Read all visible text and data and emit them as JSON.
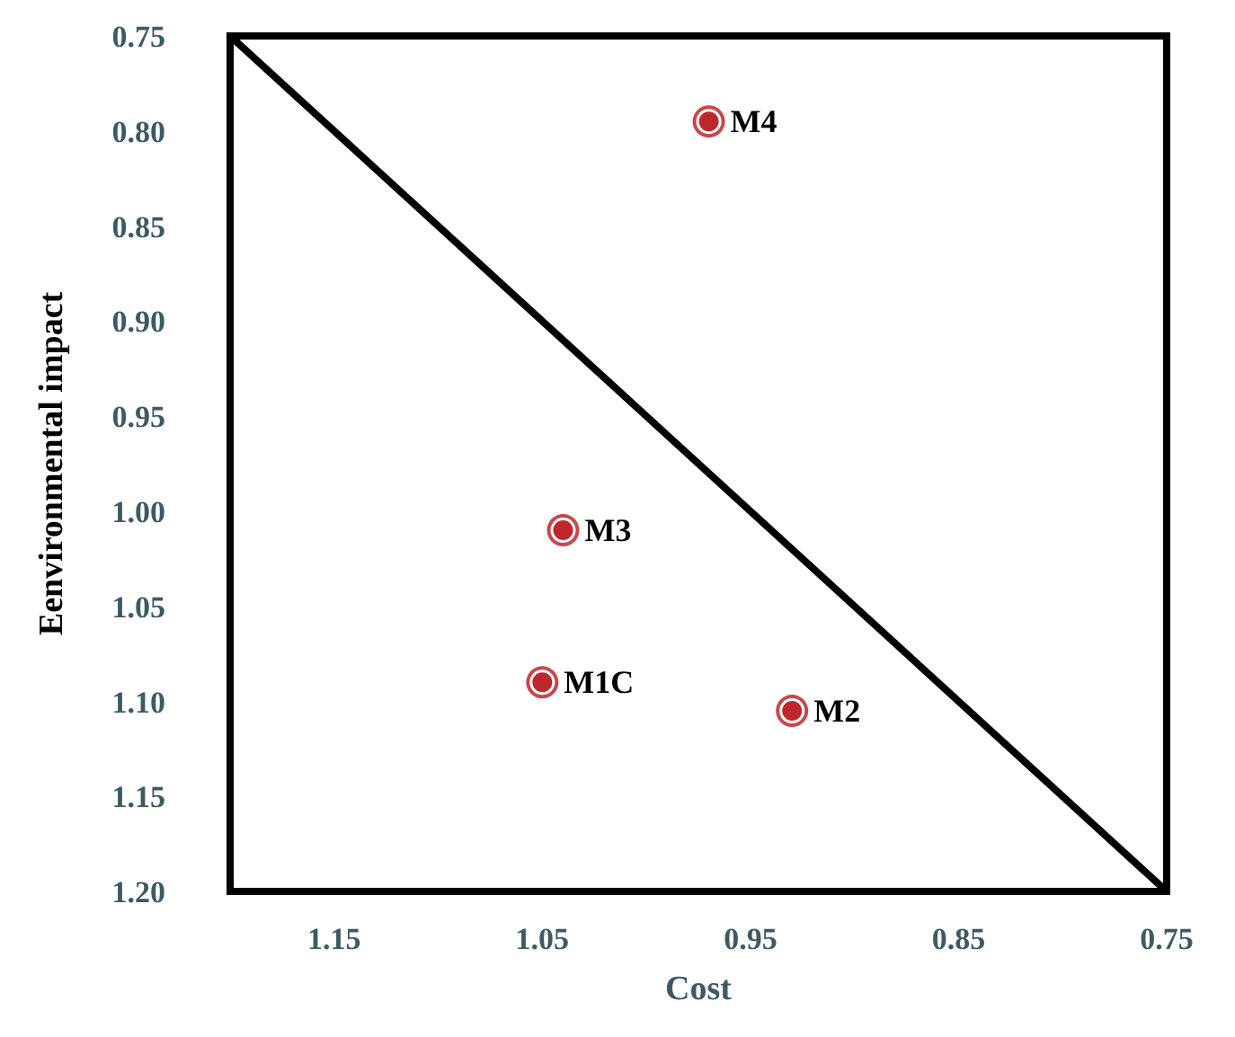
{
  "chart_data": {
    "type": "scatter",
    "xlabel": "Cost",
    "ylabel": "Eenvironmental impact",
    "xlim": [
      1.2,
      0.75
    ],
    "xticks": [
      1.15,
      1.05,
      0.95,
      0.85,
      0.75
    ],
    "ylim": [
      1.2,
      0.75
    ],
    "yticks": [
      0.75,
      {
        "value": 0.8,
        "label": "0.80"
      },
      0.85,
      {
        "value": 0.9,
        "label": "0.90"
      },
      0.95,
      {
        "value": 1.0,
        "label": "1.00"
      },
      1.05,
      {
        "value": 1.1,
        "label": "1.10"
      },
      1.15,
      {
        "value": 1.2,
        "label": "1.20"
      }
    ],
    "grid": false,
    "legend": false,
    "marker": "circle",
    "series": [
      {
        "type": "line",
        "color": "#000000",
        "x": [
          1.2,
          0.75
        ],
        "values": [
          0.75,
          1.2
        ],
        "marker": "none",
        "line_style": "solid"
      },
      {
        "name": "M4",
        "color": "#c0272d",
        "x": [
          0.97
        ],
        "values": [
          0.795
        ]
      },
      {
        "name": "M3",
        "color": "#c0272d",
        "x": [
          1.04
        ],
        "values": [
          1.01
        ]
      },
      {
        "name": "M1C",
        "color": "#c0272d",
        "x": [
          1.05
        ],
        "values": [
          1.09
        ]
      },
      {
        "name": "M2",
        "color": "#c0272d",
        "x": [
          0.93
        ],
        "values": [
          1.105
        ]
      }
    ]
  }
}
